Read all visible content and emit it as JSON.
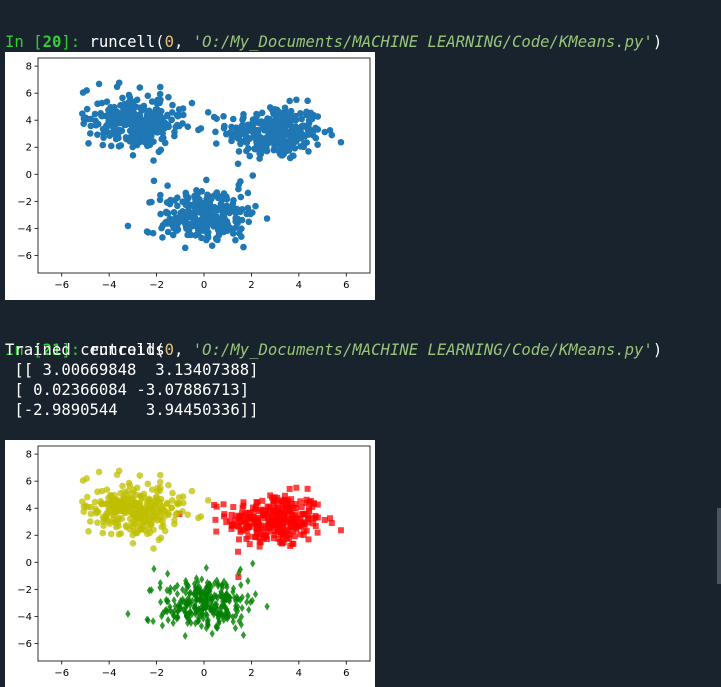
{
  "console": {
    "cell20": {
      "prompt_in": "In [",
      "prompt_num": "20",
      "prompt_close": "]:",
      "func": " runcell(",
      "arg0": "0",
      "sep": ", ",
      "path": "'O:/My_Documents/MACHINE LEARNING/Code/KMeans.py'",
      "close": ")"
    },
    "cell21": {
      "prompt_in": "In [",
      "prompt_num": "21",
      "prompt_close": "]:",
      "func": " runcell(",
      "arg0": "0",
      "sep": ", ",
      "path": "'O:/My_Documents/MACHINE LEARNING/Code/KMeans.py'",
      "close": ")"
    },
    "output": [
      "Trained centroids",
      " [[ 3.00669848  3.13407388]",
      " [ 0.02366084 -3.07886713]",
      " [-2.9890544   3.94450336]]"
    ]
  },
  "chart_data": [
    {
      "type": "scatter",
      "title": "",
      "xlabel": "",
      "ylabel": "",
      "xlim": [
        -7,
        7
      ],
      "ylim": [
        -7.3,
        8.6
      ],
      "xticks": [
        "−6",
        "−4",
        "−2",
        "0",
        "2",
        "4",
        "6"
      ],
      "xtick_values": [
        -6,
        -4,
        -2,
        0,
        2,
        4,
        6
      ],
      "yticks": [
        "8",
        "6",
        "4",
        "2",
        "0",
        "−2",
        "−4",
        "−6"
      ],
      "ytick_values": [
        8,
        6,
        4,
        2,
        0,
        -2,
        -4,
        -6
      ],
      "grid": false,
      "series": [
        {
          "color": "#1f77b4",
          "marker": "circle",
          "center": [
            3.0,
            3.1
          ],
          "spread": 1.0,
          "count": 300
        },
        {
          "color": "#1f77b4",
          "marker": "circle",
          "center": [
            0.0,
            -3.1
          ],
          "spread": 1.0,
          "count": 300
        },
        {
          "color": "#1f77b4",
          "marker": "circle",
          "center": [
            -3.0,
            3.9
          ],
          "spread": 1.0,
          "count": 300
        }
      ]
    },
    {
      "type": "scatter",
      "title": "",
      "xlabel": "",
      "ylabel": "",
      "xlim": [
        -7,
        7
      ],
      "ylim": [
        -7.3,
        8.6
      ],
      "xticks": [
        "−6",
        "−4",
        "−2",
        "0",
        "2",
        "4",
        "6"
      ],
      "xtick_values": [
        -6,
        -4,
        -2,
        0,
        2,
        4,
        6
      ],
      "yticks": [
        "8",
        "6",
        "4",
        "2",
        "0",
        "−2",
        "−4",
        "−6"
      ],
      "ytick_values": [
        8,
        6,
        4,
        2,
        0,
        -2,
        -4,
        -6
      ],
      "grid": false,
      "series": [
        {
          "color": "#ff0000",
          "marker": "square",
          "center": [
            3.0,
            3.1
          ],
          "spread": 1.0,
          "count": 300
        },
        {
          "color": "#008000",
          "marker": "diamond",
          "center": [
            0.0,
            -3.1
          ],
          "spread": 1.0,
          "count": 300
        },
        {
          "color": "#bfbf00",
          "marker": "circle",
          "center": [
            -3.0,
            3.9
          ],
          "spread": 1.0,
          "count": 300
        }
      ]
    }
  ]
}
